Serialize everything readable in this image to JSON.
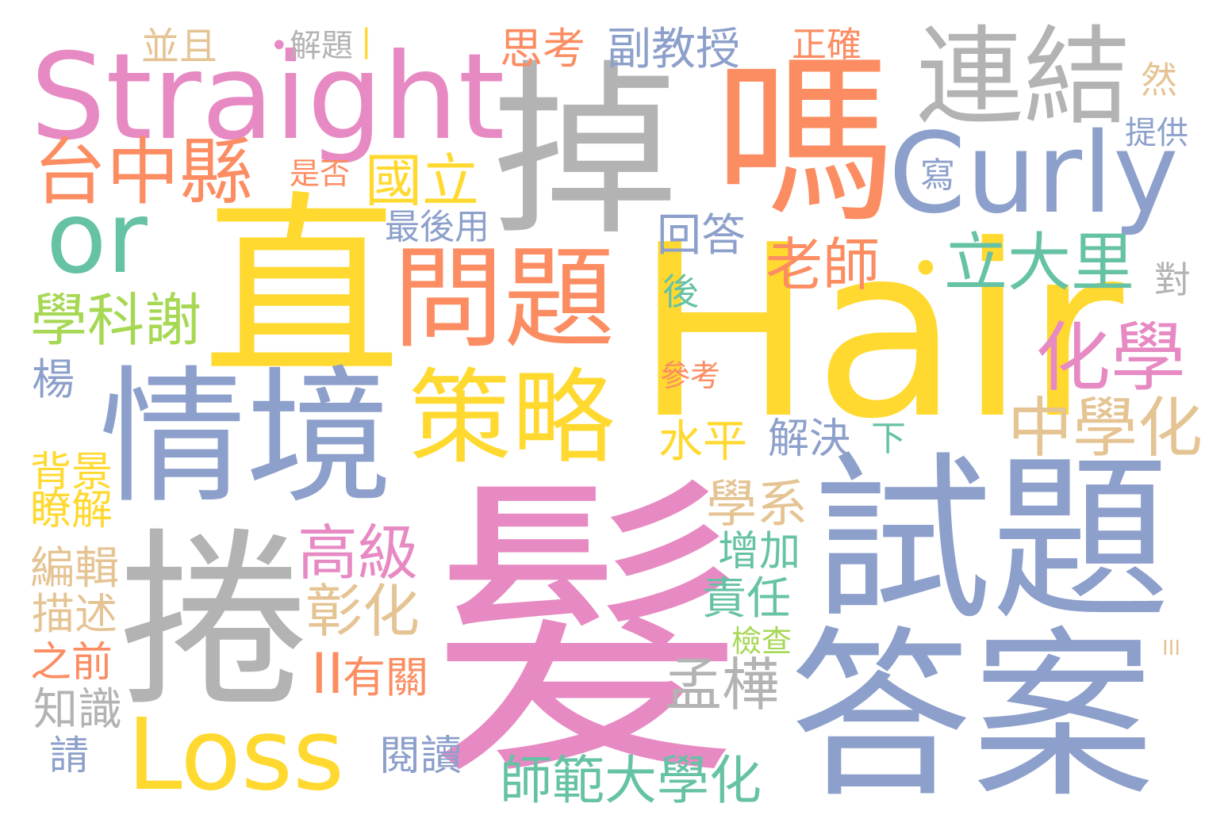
{
  "words": {
    "fa": "髮",
    "hair": "Hair",
    "zhi": "直",
    "quan": "捲",
    "shiti": "試題",
    "daan": "答案",
    "diao": "掉",
    "ma": "嗎",
    "straight": "Straight",
    "qingjing": "情境",
    "lianjie": "連結",
    "curly": "Curly",
    "wenti": "問題",
    "celue": "策略",
    "loss": "Loss",
    "or": "or",
    "taizhongxian": "台中縣",
    "huaxue": "化學",
    "lidali": "立大里",
    "zhongxuehua": "中學化",
    "laoshi": "老師",
    "guoli": "國立",
    "xuekexie": "學科謝",
    "gaoji": "高級",
    "changhua": "彰化",
    "mengye": "孟樺",
    "shifandaxuehua": "師範大學化",
    "xuexi": "學系",
    "shuiping": "水平",
    "jiejue": "解決",
    "huida": "回答",
    "fujiaoshou": "副教授",
    "sikao": "思考",
    "zhengque": "正確",
    "bingqie": "並且",
    "jieti": "解題",
    "zuihouyong": "最後用",
    "shifou": "是否",
    "xie": "寫",
    "ran": "然",
    "tigong": "提供",
    "dui": "對",
    "hou": "後",
    "cankao": "參考",
    "xia": "下",
    "yang": "楊",
    "beijing": "背景",
    "liaojie": "瞭解",
    "bianji": "編輯",
    "miaoshu": "描述",
    "zhiqian": "之前",
    "zhishi": "知識",
    "qing": "請",
    "zengjia": "增加",
    "zeren": "責任",
    "jiancha": "檢查",
    "youguan": "有關",
    "ii": "II",
    "iii": "III",
    "yuedu": "閱讀",
    "dot1": "•",
    "dot2": "•",
    "bar": "|"
  }
}
